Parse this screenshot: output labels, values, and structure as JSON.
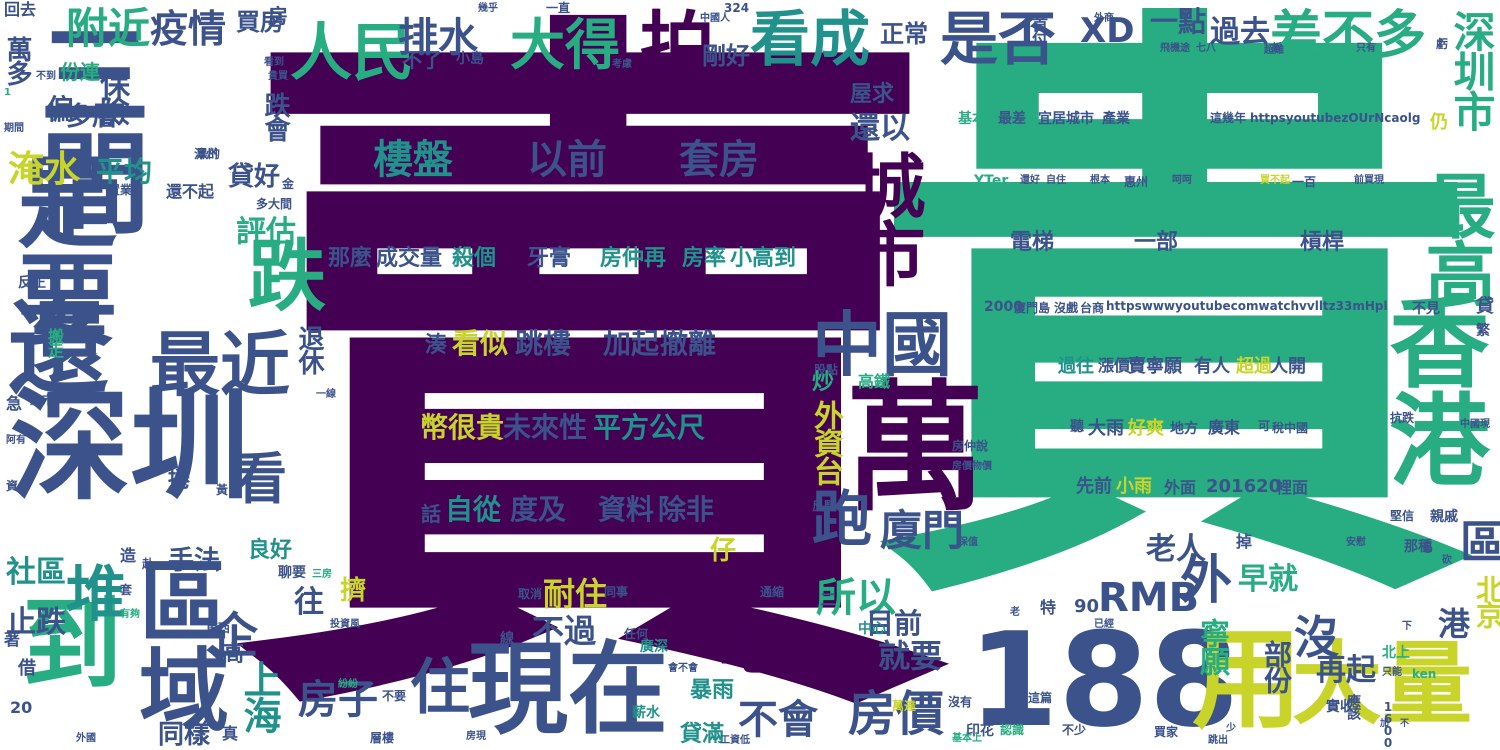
{
  "colors": {
    "purple": "#440154",
    "indigo": "#3b528b",
    "teal": "#21918c",
    "green": "#27ad81",
    "lime": "#5ec962",
    "yellow": "#c8d42a",
    "background": "#ffffff"
  },
  "main_glyphs": {
    "sell": "賣",
    "expensive": "貴"
  },
  "words": [
    "回去",
    "三間",
    "是要",
    "還",
    "深圳",
    "到",
    "區域",
    "現在",
    "住",
    "房子",
    "吧",
    "不會",
    "房價",
    "188",
    "用",
    "大量",
    "看成",
    "拍",
    "大得",
    "人民",
    "排水",
    "疫情",
    "附近",
    "買房",
    "房",
    "是否",
    "XD",
    "一點",
    "過去",
    "差不多",
    "深圳市",
    "最高",
    "香港",
    "萬",
    "中國",
    "城市",
    "跌",
    "最近",
    "看",
    "堆",
    "企",
    "上海",
    "跑",
    "廈門",
    "外資台",
    "所以",
    "RMB",
    "外",
    "早就",
    "沒",
    "港",
    "北京",
    "區",
    "再起",
    "老人",
    "寧願",
    "部份",
    "就要",
    "目前",
    "不過",
    "耐住",
    "樓盤",
    "以前",
    "套房",
    "電梯",
    "一部",
    "槓桿",
    "湊",
    "看似",
    "跳樓",
    "加起",
    "撤離",
    "幣很貴",
    "未來性",
    "平方公尺",
    "話",
    "自從",
    "度及",
    "資料",
    "除非",
    "那麼",
    "成交量",
    "殺個",
    "牙膏",
    "房仲再",
    "房率",
    "小高到",
    "淹水",
    "平均",
    "保險",
    "萬多",
    "多層",
    "偏",
    "評估",
    "貸好",
    "仔",
    "剛好",
    "正常",
    "不了",
    "小島",
    "還以",
    "屋求",
    "跌會",
    "退休",
    "炒",
    "高鐵",
    "同樣",
    "手法",
    "良好",
    "社區",
    "止跌",
    "往",
    "擠",
    "過往",
    "漲價",
    "賣寧願",
    "有人",
    "超過",
    "人開",
    "大雨",
    "好爽",
    "地方",
    "廣東",
    "稅中國",
    "其他",
    "先前",
    "小雨",
    "外面",
    "201620",
    "裡面",
    "基本面",
    "最差",
    "宜居城市",
    "產業",
    "這幾年",
    "httpsyoutubezOUrNcaolg",
    "httpswwwyoutubecomwatchvvlltz33mHpl",
    "2000",
    "廈門島",
    "沒戲",
    "台商",
    "YTer",
    "還好",
    "自住",
    "根本",
    "惠州",
    "呵呵",
    "買不起",
    "一百",
    "前買現",
    "置業",
    "還不起",
    "首付",
    "外商",
    "飛機途",
    "七八",
    "折",
    "超難",
    "只有",
    "虧",
    "份連",
    "搬走",
    "反正",
    "急",
    "房市",
    "阿有",
    "資",
    "捲",
    "黃",
    "高",
    "借",
    "著",
    "20",
    "真",
    "貸滿",
    "暴雨",
    "薪水",
    "會不會",
    "廣深",
    "任何",
    "線",
    "同事",
    "取消",
    "通縮",
    "中心",
    "印花",
    "認識",
    "不少",
    "買家",
    "實收",
    "北上",
    "只能",
    "ken",
    "應該",
    "1600",
    "90",
    "特",
    "這篇",
    "沒有",
    "工資低",
    "跳出",
    "不見",
    "貸",
    "繁",
    "抗跌",
    "中國現",
    "堅信",
    "親戚",
    "那種",
    "6",
    "掉",
    "安慰",
    "砍",
    "保值",
    "股點",
    "反駁",
    "聽",
    "可",
    "一線",
    "二",
    "少",
    "萬達",
    "東西",
    "三房",
    "聊要",
    "造",
    "赴",
    "套",
    "有夠",
    "房現",
    "層樓",
    "不要",
    "紛紛",
    "投資風",
    "外國",
    "基本上",
    "聽",
    "下",
    "已經",
    "老",
    "看到",
    "貴買",
    "期間",
    "1",
    "不到",
    "324",
    "幾乎",
    "一直",
    "中國人",
    "考慮",
    "不",
    "真的",
    "加",
    "金",
    "多大間",
    "黑的",
    "漳州",
    "房價物價",
    "房仲說",
    "平均",
    "仍",
    "一百",
    "超過"
  ]
}
